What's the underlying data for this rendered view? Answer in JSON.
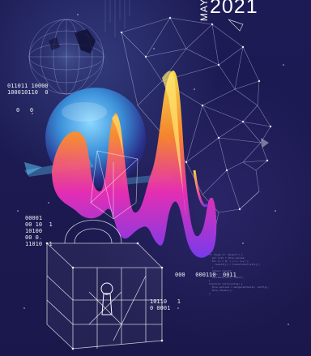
{
  "title": {
    "month": "MAY",
    "year": "2021"
  },
  "binary_blocks": [
    "011011 10000\n100010110  0",
    "0   0",
    "00001\n00 10  1\n10100\n00 0.\n11010  1",
    "000   000110  0011",
    "10110   1\n0 0001"
  ],
  "code_lines": [
    "if (type == 'object') {",
    "  var list = this.values;",
    "  for (i = 0; i < n; i++) {",
    "    result[i] = transform(list[i]);",
    "  }",
    "  return result;",
    "} else {",
    "  callback(null, input);",
    "}",
    "function init(config) {",
    "  this.options = merge(defaults, config);",
    "  this.render();",
    "}"
  ],
  "colors": {
    "background": "#1b1950",
    "accent_yellow": "#ffd23a",
    "accent_orange": "#ff7a2a",
    "accent_magenta": "#e52ccf",
    "accent_violet": "#7a3cf0",
    "accent_cyan": "#35c6f0"
  },
  "icons": [
    "globe-icon",
    "padlock-icon",
    "head-silhouette-icon"
  ]
}
